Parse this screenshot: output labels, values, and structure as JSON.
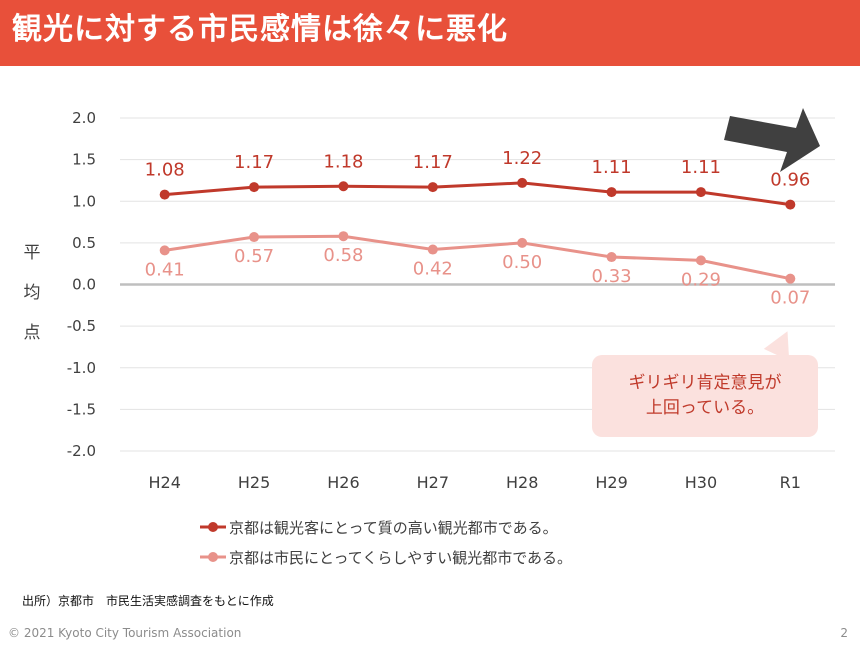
{
  "header": {
    "title": "観光に対する市民感情は徐々に悪化"
  },
  "chart_data": {
    "type": "line",
    "categories": [
      "H24",
      "H25",
      "H26",
      "H27",
      "H28",
      "H29",
      "H30",
      "R1"
    ],
    "ylabel": "平均点",
    "ylim": [
      -2.0,
      2.0
    ],
    "yticks": [
      "2.0",
      "1.5",
      "1.0",
      "0.5",
      "0.0",
      "-0.5",
      "-1.0",
      "-1.5",
      "-2.0"
    ],
    "grid": true,
    "legend_position": "bottom",
    "series": [
      {
        "name": "京都は観光客にとって質の高い観光都市である。",
        "values": [
          1.08,
          1.17,
          1.18,
          1.17,
          1.22,
          1.11,
          1.11,
          0.96
        ],
        "labels": [
          "1.08",
          "1.17",
          "1.18",
          "1.17",
          "1.22",
          "1.11",
          "1.11",
          "0.96"
        ],
        "color": "#c0392b"
      },
      {
        "name": "京都は市民にとってくらしやすい観光都市である。",
        "values": [
          0.41,
          0.57,
          0.58,
          0.42,
          0.5,
          0.33,
          0.29,
          0.07
        ],
        "labels": [
          "0.41",
          "0.57",
          "0.58",
          "0.42",
          "0.50",
          "0.33",
          "0.29",
          "0.07"
        ],
        "color": "#e8928a"
      }
    ]
  },
  "callout": {
    "text": "ギリギリ肯定意見が\n上回っている。"
  },
  "source": "出所）京都市　市民生活実感調査をもとに作成",
  "footer": {
    "copyright": "© 2021 Kyoto City Tourism Association",
    "page": "2"
  },
  "colors": {
    "header_bg": "#e8503a",
    "arrow": "#404040",
    "callout_bg": "#fbe1de"
  }
}
